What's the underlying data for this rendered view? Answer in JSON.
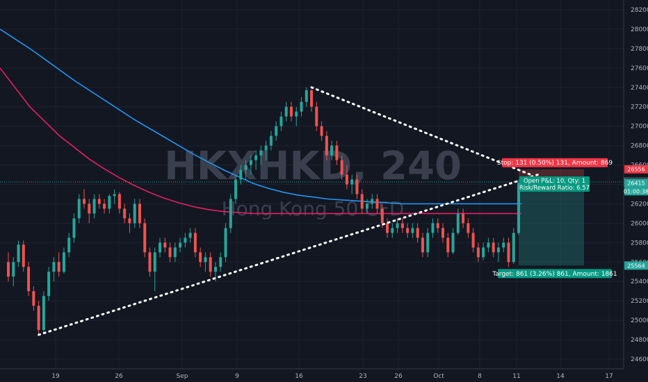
{
  "chart_data": {
    "type": "candlestick",
    "watermark": {
      "symbol": "HKXHKD, 240",
      "name": "Hong Kong 50 CFD"
    },
    "xlabels": [
      "19",
      "26",
      "Sep",
      "9",
      "16",
      "23",
      "26",
      "Oct",
      "8",
      "11",
      "14",
      "17"
    ],
    "ylim": [
      24500,
      28300
    ],
    "yticks": [
      24600,
      24800,
      25000,
      25200,
      25400,
      25600,
      25800,
      26000,
      26200,
      26400,
      26600,
      26800,
      27000,
      27200,
      27400,
      27600,
      27800,
      28000,
      28200
    ],
    "price_labels": [
      {
        "value": 26556,
        "text": "26556",
        "color": "#f23645"
      },
      {
        "value": 26425,
        "text": "26425",
        "color": "#131722"
      },
      {
        "value": 26415,
        "text": "26415",
        "color": "#26a69a"
      },
      {
        "value": 26330,
        "text": "01:00:38",
        "color": "#26a69a"
      },
      {
        "value": 25564,
        "text": "25564",
        "color": "#26a69a"
      }
    ],
    "position": {
      "stop_label": "Stop: 131 (0.50%) 131, Amount: 869",
      "pnl_label": "Open P&L: 10, Qty: 1",
      "rr_label": "Risk/Reward Ratio: 6.57",
      "target_label": "Target: 861 (3.26%) 861, Amount: 1861",
      "entry": 26425,
      "stop": 26556,
      "target": 25564
    },
    "candles": [
      [
        25600,
        25700,
        25400,
        25450
      ],
      [
        25450,
        25650,
        25350,
        25600
      ],
      [
        25600,
        25820,
        25550,
        25780
      ],
      [
        25780,
        25820,
        25500,
        25550
      ],
      [
        25550,
        25600,
        25250,
        25300
      ],
      [
        25300,
        25350,
        25100,
        25150
      ],
      [
        25150,
        25200,
        24850,
        24900
      ],
      [
        24900,
        25300,
        24870,
        25250
      ],
      [
        25250,
        25550,
        25200,
        25500
      ],
      [
        25500,
        25650,
        25400,
        25600
      ],
      [
        25600,
        25700,
        25450,
        25500
      ],
      [
        25500,
        25750,
        25480,
        25700
      ],
      [
        25700,
        25900,
        25650,
        25850
      ],
      [
        25850,
        26100,
        25800,
        26050
      ],
      [
        26050,
        26300,
        26000,
        26250
      ],
      [
        26250,
        26350,
        26150,
        26200
      ],
      [
        26200,
        26250,
        26000,
        26100
      ],
      [
        26100,
        26300,
        26050,
        26250
      ],
      [
        26250,
        26300,
        26150,
        26200
      ],
      [
        26200,
        26250,
        26100,
        26150
      ],
      [
        26150,
        26300,
        26100,
        26280
      ],
      [
        26280,
        26350,
        26200,
        26300
      ],
      [
        26300,
        26320,
        26100,
        26150
      ],
      [
        26150,
        26200,
        26000,
        26050
      ],
      [
        26050,
        26100,
        25900,
        26000
      ],
      [
        26000,
        26250,
        25950,
        26200
      ],
      [
        26200,
        26250,
        25950,
        26000
      ],
      [
        26000,
        26050,
        25650,
        25700
      ],
      [
        25700,
        25750,
        25450,
        25500
      ],
      [
        25500,
        25750,
        25300,
        25700
      ],
      [
        25700,
        25850,
        25650,
        25800
      ],
      [
        25800,
        25850,
        25700,
        25750
      ],
      [
        25750,
        25800,
        25600,
        25650
      ],
      [
        25650,
        25800,
        25600,
        25750
      ],
      [
        25750,
        25850,
        25700,
        25800
      ],
      [
        25800,
        25900,
        25750,
        25850
      ],
      [
        25850,
        25950,
        25800,
        25900
      ],
      [
        25900,
        25950,
        25650,
        25700
      ],
      [
        25700,
        25750,
        25550,
        25600
      ],
      [
        25600,
        25700,
        25500,
        25650
      ],
      [
        25650,
        25700,
        25450,
        25500
      ],
      [
        25500,
        25600,
        25400,
        25550
      ],
      [
        25550,
        25700,
        25500,
        25650
      ],
      [
        25650,
        26000,
        25600,
        25950
      ],
      [
        25950,
        26300,
        25900,
        26250
      ],
      [
        26250,
        26500,
        26200,
        26450
      ],
      [
        26450,
        26600,
        26400,
        26550
      ],
      [
        26550,
        26650,
        26450,
        26600
      ],
      [
        26600,
        26700,
        26500,
        26650
      ],
      [
        26650,
        26750,
        26550,
        26700
      ],
      [
        26700,
        26800,
        26600,
        26750
      ],
      [
        26750,
        26850,
        26650,
        26800
      ],
      [
        26800,
        26950,
        26750,
        26900
      ],
      [
        26900,
        27050,
        26850,
        27000
      ],
      [
        27000,
        27150,
        26950,
        27100
      ],
      [
        27100,
        27250,
        27050,
        27200
      ],
      [
        27200,
        27250,
        27050,
        27100
      ],
      [
        27100,
        27200,
        27000,
        27150
      ],
      [
        27150,
        27300,
        27100,
        27250
      ],
      [
        27250,
        27400,
        27200,
        27370
      ],
      [
        27370,
        27380,
        27150,
        27200
      ],
      [
        27200,
        27250,
        26950,
        27000
      ],
      [
        27000,
        27050,
        26850,
        26900
      ],
      [
        26900,
        26950,
        26650,
        26700
      ],
      [
        26700,
        26850,
        26650,
        26800
      ],
      [
        26800,
        26850,
        26600,
        26650
      ],
      [
        26650,
        26700,
        26450,
        26500
      ],
      [
        26500,
        26600,
        26350,
        26400
      ],
      [
        26400,
        26500,
        26300,
        26450
      ],
      [
        26450,
        26500,
        26250,
        26300
      ],
      [
        26300,
        26350,
        26100,
        26150
      ],
      [
        26150,
        26250,
        26100,
        26200
      ],
      [
        26200,
        26300,
        26150,
        26250
      ],
      [
        26250,
        26300,
        26100,
        26150
      ],
      [
        26150,
        26200,
        25950,
        26000
      ],
      [
        26000,
        26050,
        25850,
        25900
      ],
      [
        25900,
        26000,
        25850,
        25950
      ],
      [
        25950,
        26050,
        25900,
        26000
      ],
      [
        26000,
        26050,
        25900,
        25950
      ],
      [
        25950,
        26000,
        25850,
        25900
      ],
      [
        25900,
        26000,
        25850,
        25950
      ],
      [
        25950,
        26000,
        25800,
        25850
      ],
      [
        25850,
        25900,
        25650,
        25700
      ],
      [
        25700,
        25950,
        25650,
        25900
      ],
      [
        25900,
        26050,
        25850,
        26000
      ],
      [
        26000,
        26050,
        25900,
        25950
      ],
      [
        25950,
        26000,
        25800,
        25850
      ],
      [
        25850,
        25900,
        25650,
        25700
      ],
      [
        25700,
        25950,
        25680,
        25900
      ],
      [
        25900,
        26150,
        25880,
        26100
      ],
      [
        26100,
        26150,
        25950,
        26000
      ],
      [
        26000,
        26050,
        25850,
        25900
      ],
      [
        25900,
        25950,
        25700,
        25750
      ],
      [
        25750,
        25800,
        25600,
        25650
      ],
      [
        25650,
        25800,
        25620,
        25750
      ],
      [
        25750,
        25850,
        25700,
        25800
      ],
      [
        25800,
        25850,
        25650,
        25700
      ],
      [
        25700,
        25800,
        25600,
        25750
      ],
      [
        25750,
        25850,
        25700,
        25800
      ],
      [
        25800,
        25850,
        25550,
        25600
      ],
      [
        25600,
        25950,
        25580,
        25900
      ],
      [
        25900,
        26450,
        25880,
        26415
      ]
    ],
    "series": [
      {
        "color": "#2196f3",
        "values": [
          28000,
          27900,
          27800,
          27690,
          27580,
          27470,
          27370,
          27270,
          27170,
          27070,
          26980,
          26890,
          26800,
          26710,
          26630,
          26550,
          26480,
          26410,
          26360,
          26320,
          26290,
          26270,
          26250,
          26240,
          26230,
          26220,
          26210,
          26200,
          26200,
          26200,
          26200,
          26200,
          26200,
          26200,
          26200,
          26200
        ]
      },
      {
        "color": "#e91e63",
        "values": [
          27600,
          27400,
          27200,
          27050,
          26900,
          26780,
          26660,
          26560,
          26470,
          26390,
          26320,
          26260,
          26210,
          26170,
          26140,
          26120,
          26110,
          26100,
          26100,
          26100,
          26100,
          26100,
          26100,
          26100,
          26100,
          26100,
          26100,
          26100,
          26100,
          26100,
          26100,
          26100,
          26100,
          26100,
          26100,
          26100
        ]
      }
    ]
  }
}
